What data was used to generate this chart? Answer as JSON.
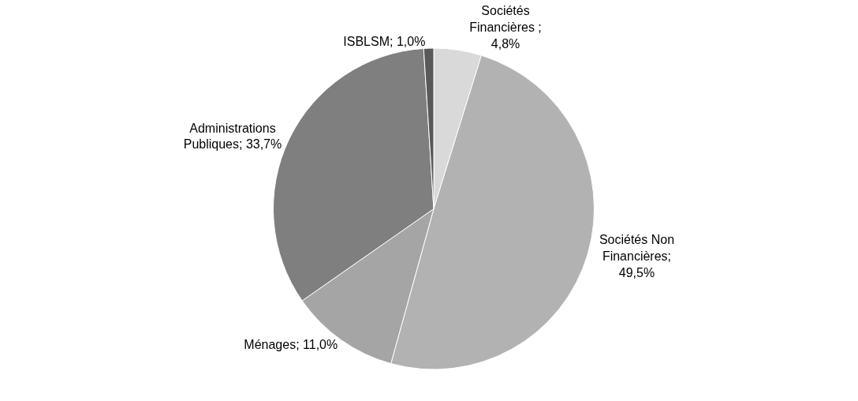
{
  "chart_data": {
    "type": "pie",
    "categories": [
      "Sociétés Financières",
      "Sociétés Non Financières",
      "Ménages",
      "Administrations Publiques",
      "ISBLSM"
    ],
    "values": [
      4.8,
      49.5,
      11.0,
      33.7,
      1.0
    ],
    "value_labels": [
      " ; 4,8%",
      "; 49,5%",
      "; 11,0%",
      "; 33,7%",
      "; 1,0%"
    ],
    "colors": [
      "#d9d9d9",
      "#b2b2b2",
      "#a5a5a5",
      "#7f7f7f",
      "#595959"
    ],
    "legend": false
  }
}
